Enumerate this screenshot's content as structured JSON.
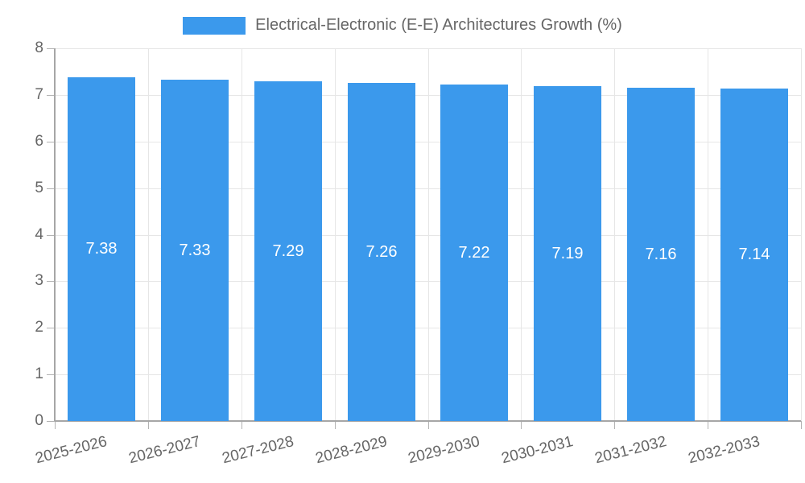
{
  "chart_data": {
    "type": "bar",
    "title": "Electrical-Electronic (E-E) Architectures Growth (%)",
    "categories": [
      "2025-2026",
      "2026-2027",
      "2027-2028",
      "2028-2029",
      "2029-2030",
      "2030-2031",
      "2031-2032",
      "2032-2033"
    ],
    "values": [
      7.38,
      7.33,
      7.29,
      7.26,
      7.22,
      7.19,
      7.16,
      7.14
    ],
    "value_labels": [
      "7.38",
      "7.33",
      "7.29",
      "7.26",
      "7.22",
      "7.19",
      "7.16",
      "7.14"
    ],
    "xlabel": "",
    "ylabel": "",
    "ylim": [
      0,
      8
    ],
    "yticks": [
      0,
      1,
      2,
      3,
      4,
      5,
      6,
      7,
      8
    ],
    "grid": true,
    "legend_position": "top",
    "legend_entries": [
      "Electrical-Electronic (E-E) Architectures Growth (%)"
    ],
    "bar_color": "#3B99EC",
    "value_label_color": "#ffffff",
    "tick_label_color": "#666666"
  }
}
